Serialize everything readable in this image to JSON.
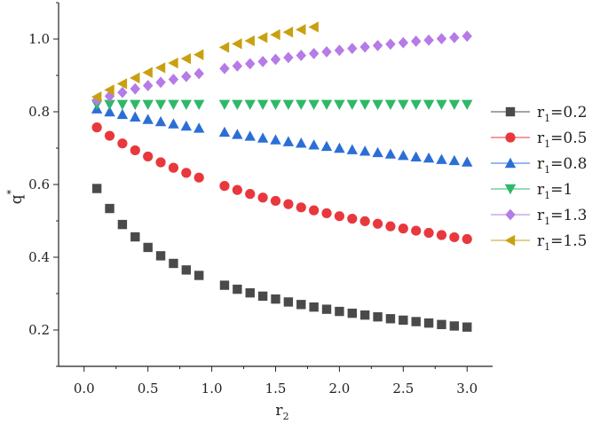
{
  "chart_data": {
    "type": "scatter",
    "title": "",
    "xlabel": "r",
    "xlabel_sub": "2",
    "ylabel": "q",
    "ylabel_sup": "*",
    "xlim": [
      -0.2,
      3.2
    ],
    "ylim": [
      0.1,
      1.1
    ],
    "x_ticks": [
      0.0,
      0.5,
      1.0,
      1.5,
      2.0,
      2.5,
      3.0
    ],
    "x_tick_labels": [
      "0.0",
      "0.5",
      "1.0",
      "1.5",
      "2.0",
      "2.5",
      "3.0"
    ],
    "y_ticks": [
      0.2,
      0.4,
      0.6,
      0.8,
      1.0
    ],
    "y_tick_labels": [
      "0.2",
      "0.4",
      "0.6",
      "0.8",
      "1.0"
    ],
    "grid": false,
    "legend_position": "right",
    "x": [
      0.1,
      0.2,
      0.3,
      0.4,
      0.5,
      0.6,
      0.7,
      0.8,
      0.9,
      1.1,
      1.2,
      1.3,
      1.4,
      1.5,
      1.6,
      1.7,
      1.8,
      1.9,
      2.0,
      2.1,
      2.2,
      2.3,
      2.4,
      2.5,
      2.6,
      2.7,
      2.8,
      2.9,
      3.0
    ],
    "series": [
      {
        "name": "r₁=0.2",
        "legend_prefix": "r",
        "legend_sub": "1",
        "legend_suffix": "=0.2",
        "marker": "square",
        "color": "#4a4a4a",
        "values": [
          0.589,
          0.534,
          0.49,
          0.456,
          0.427,
          0.404,
          0.383,
          0.365,
          0.35,
          0.323,
          0.312,
          0.302,
          0.293,
          0.285,
          0.277,
          0.27,
          0.263,
          0.257,
          0.251,
          0.246,
          0.241,
          0.236,
          0.231,
          0.227,
          0.223,
          0.219,
          0.215,
          0.211,
          0.208
        ]
      },
      {
        "name": "r₁=0.5",
        "legend_prefix": "r",
        "legend_sub": "1",
        "legend_suffix": "=0.5",
        "marker": "circle",
        "color": "#e8383d",
        "values": [
          0.757,
          0.734,
          0.713,
          0.694,
          0.677,
          0.661,
          0.646,
          0.632,
          0.619,
          0.596,
          0.585,
          0.574,
          0.564,
          0.555,
          0.546,
          0.537,
          0.529,
          0.521,
          0.513,
          0.506,
          0.499,
          0.492,
          0.485,
          0.479,
          0.473,
          0.467,
          0.461,
          0.455,
          0.45
        ]
      },
      {
        "name": "r₁=0.8",
        "legend_prefix": "r",
        "legend_sub": "1",
        "legend_suffix": "=0.8",
        "marker": "triangle-up",
        "color": "#2b6fd6",
        "values": [
          0.808,
          0.8,
          0.793,
          0.786,
          0.779,
          0.773,
          0.767,
          0.761,
          0.755,
          0.744,
          0.738,
          0.733,
          0.728,
          0.723,
          0.718,
          0.714,
          0.709,
          0.705,
          0.7,
          0.696,
          0.692,
          0.688,
          0.684,
          0.68,
          0.676,
          0.673,
          0.669,
          0.666,
          0.662
        ]
      },
      {
        "name": "r₁=1",
        "legend_prefix": "r",
        "legend_sub": "1",
        "legend_suffix": "=1",
        "marker": "triangle-down",
        "color": "#2fb86a",
        "values": [
          0.82,
          0.82,
          0.82,
          0.82,
          0.82,
          0.82,
          0.82,
          0.82,
          0.82,
          0.82,
          0.82,
          0.82,
          0.82,
          0.82,
          0.82,
          0.82,
          0.82,
          0.82,
          0.82,
          0.82,
          0.82,
          0.82,
          0.82,
          0.82,
          0.82,
          0.82,
          0.82,
          0.82,
          0.82
        ]
      },
      {
        "name": "r₁=1.3",
        "legend_prefix": "r",
        "legend_sub": "1",
        "legend_suffix": "=1.3",
        "marker": "diamond",
        "color": "#b57be6",
        "values": [
          0.832,
          0.843,
          0.853,
          0.863,
          0.872,
          0.881,
          0.889,
          0.897,
          0.905,
          0.919,
          0.926,
          0.932,
          0.938,
          0.944,
          0.949,
          0.955,
          0.96,
          0.965,
          0.969,
          0.974,
          0.978,
          0.982,
          0.986,
          0.99,
          0.994,
          0.997,
          1.001,
          1.004,
          1.008
        ]
      },
      {
        "name": "r₁=1.5",
        "legend_prefix": "r",
        "legend_sub": "1",
        "legend_suffix": "=1.5",
        "marker": "triangle-left",
        "color": "#c9a010",
        "values": [
          0.841,
          0.86,
          0.877,
          0.893,
          0.908,
          0.921,
          0.934,
          0.946,
          0.957,
          0.977,
          0.987,
          0.995,
          1.004,
          1.012,
          1.019,
          1.026,
          1.033,
          null,
          null,
          null,
          null,
          null,
          null,
          null,
          null,
          null,
          null,
          null,
          null
        ]
      }
    ]
  }
}
